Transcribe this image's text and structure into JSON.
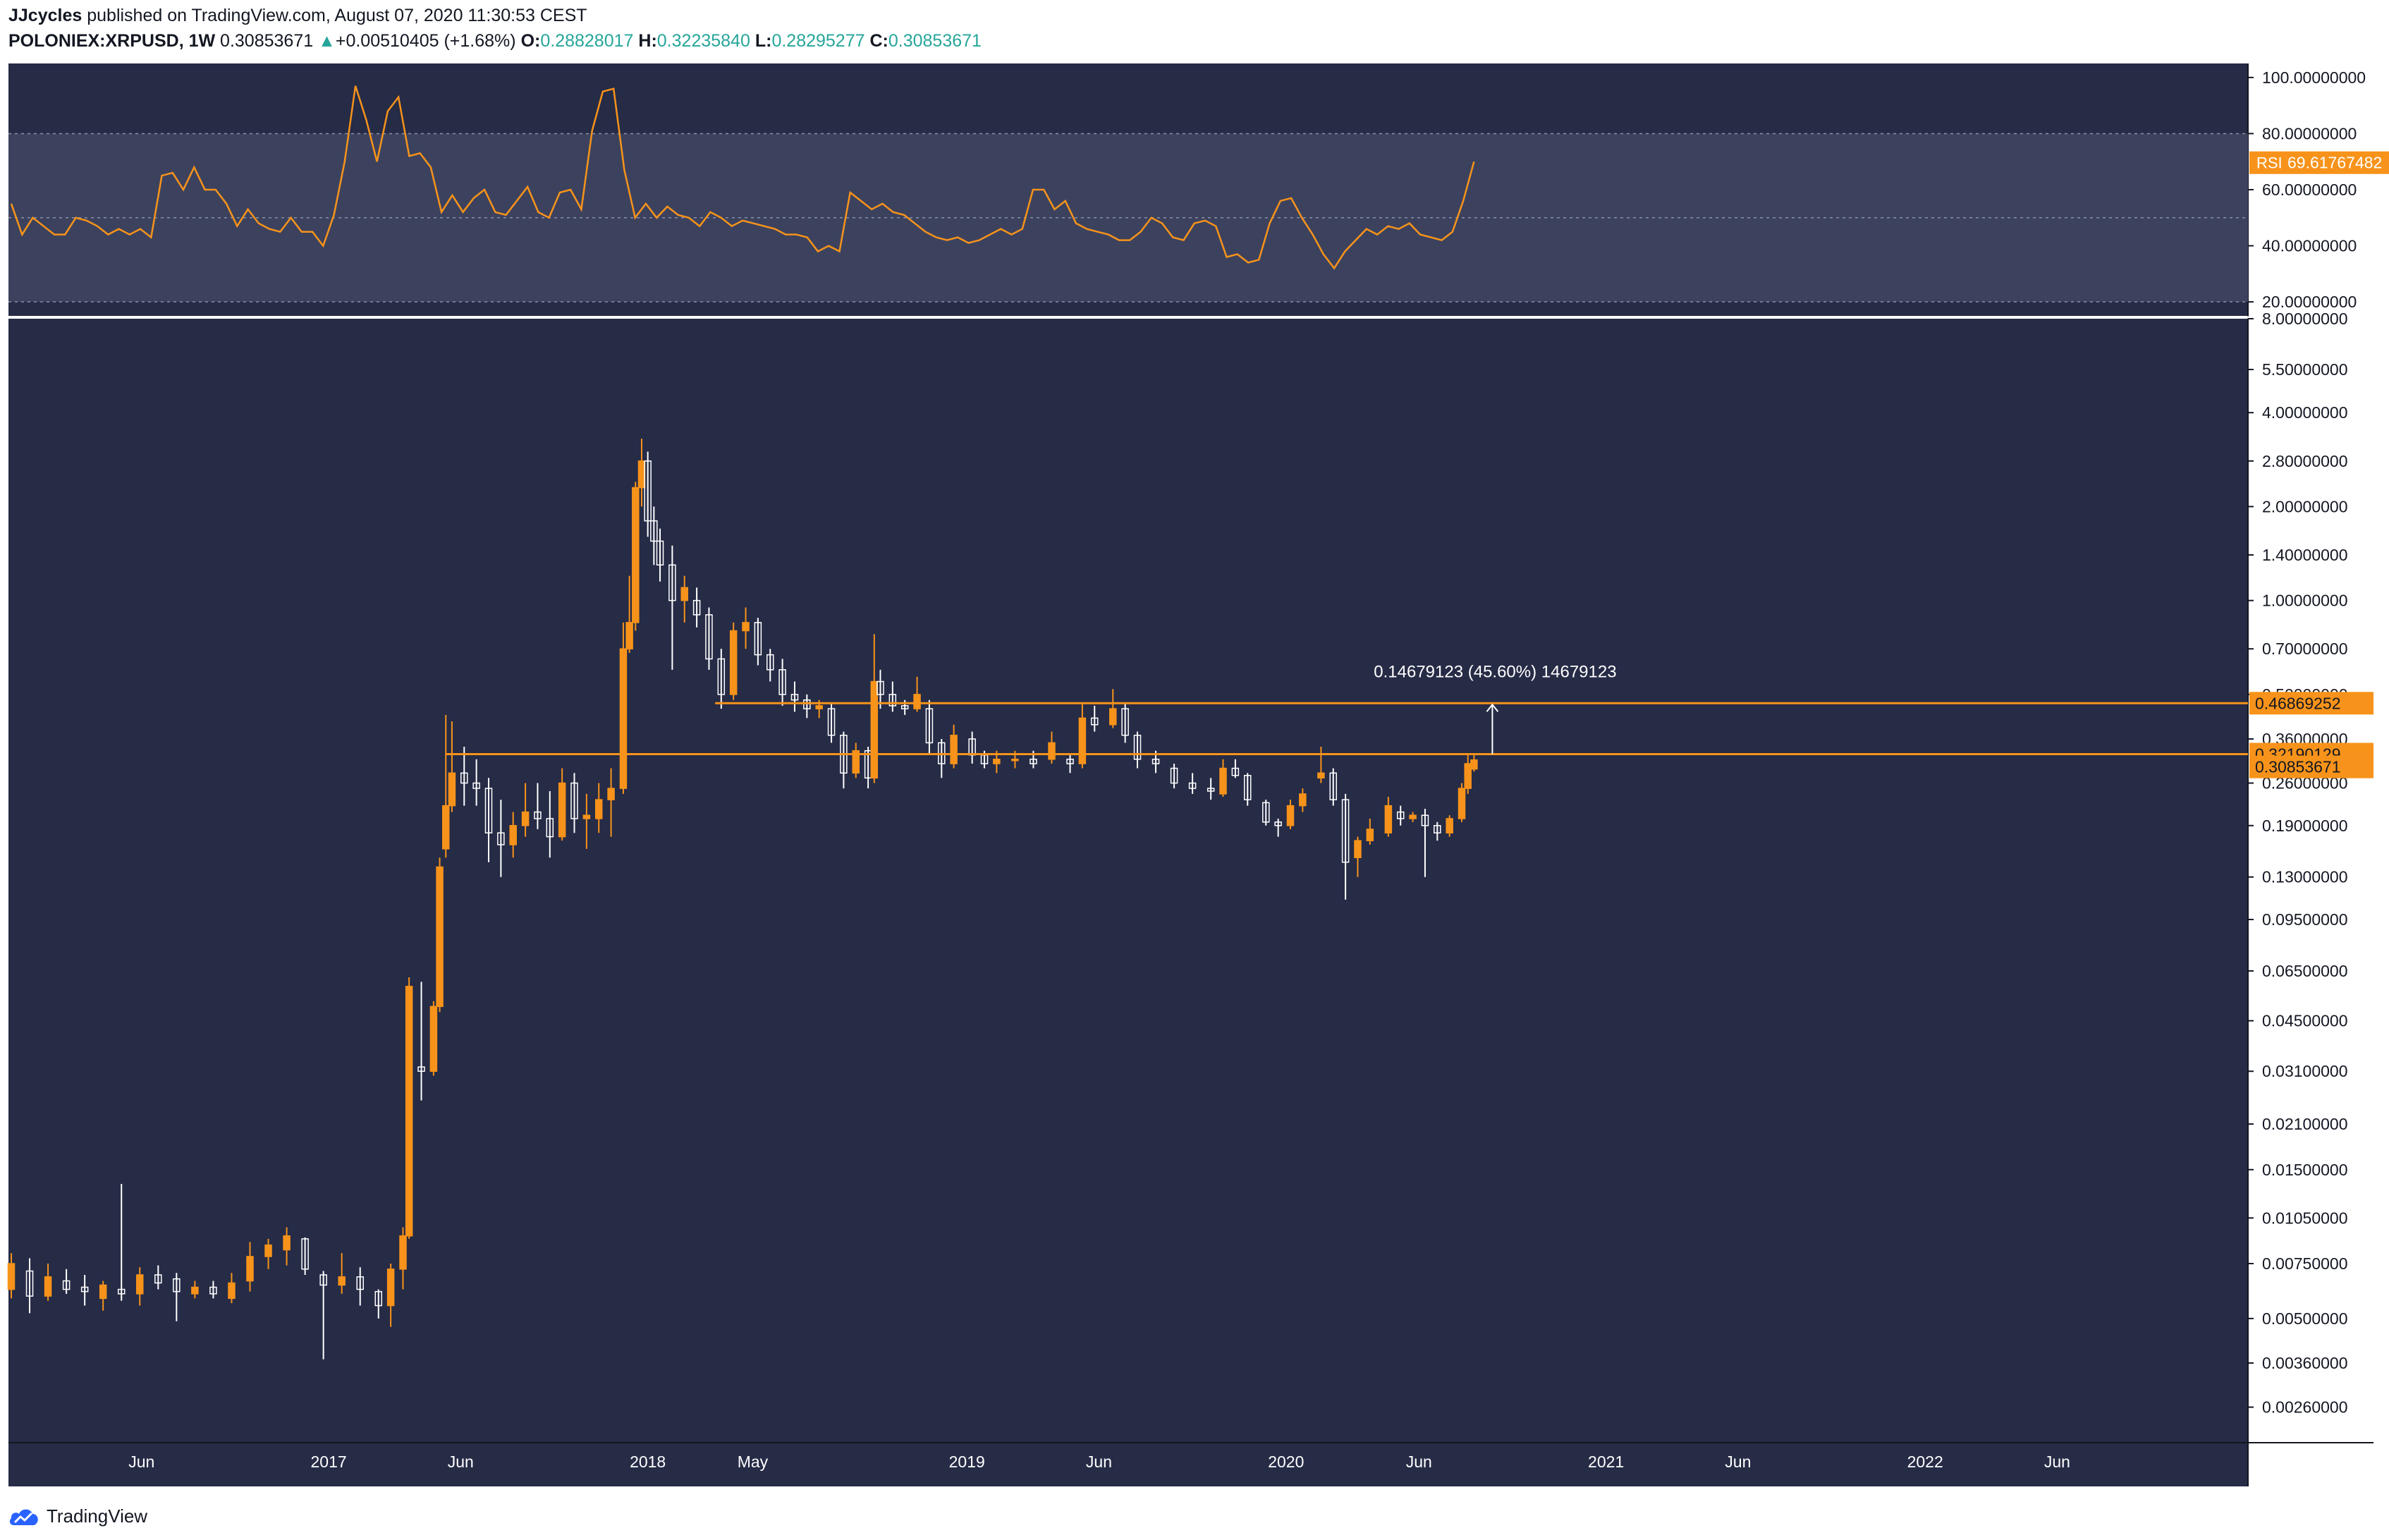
{
  "header": {
    "author": "JJcycles",
    "published_text": "published on TradingView.com, August 07, 2020 11:30:53 CEST",
    "symbol": "POLONIEX:XRPUSD, 1W",
    "last": "0.30853671",
    "change_arrow": "▲",
    "change": "+0.00510405 (+1.68%)",
    "o_label": "O:",
    "o_value": "0.28828017",
    "h_label": "H:",
    "h_value": "0.32235840",
    "l_label": "L:",
    "l_value": "0.28295277",
    "c_label": "C:",
    "c_value": "0.30853671"
  },
  "footer": {
    "brand": "TradingView",
    "icon": "tradingview-cloud-icon"
  },
  "colors": {
    "background": "#262b46",
    "rsi_band": "#3c425e",
    "accent": "#f7931a",
    "candle_up": "#f7931a",
    "candle_down": "#ffffff",
    "text_up": "#26a69a",
    "axis_text": "#131722"
  },
  "chart_data": [
    {
      "type": "line",
      "name": "rsi-panel",
      "indicator": "RSI",
      "label_value": "69.61767482",
      "y_ticks": [
        "100.00000000",
        "80.00000000",
        "60.00000000",
        "40.00000000",
        "20.00000000"
      ],
      "ylim": [
        15,
        105
      ],
      "band": [
        20,
        80
      ],
      "midline": 50,
      "values": [
        55,
        44,
        50,
        47,
        44,
        44,
        50,
        49,
        47,
        44,
        46,
        44,
        46,
        43,
        65,
        66,
        60,
        68,
        60,
        60,
        55,
        47,
        53,
        48,
        46,
        45,
        50,
        45,
        45,
        40,
        51,
        70,
        97,
        85,
        70,
        88,
        93,
        72,
        73,
        68,
        52,
        58,
        52,
        57,
        60,
        52,
        51,
        56,
        61,
        52,
        50,
        59,
        60,
        53,
        81,
        95,
        96,
        67,
        50,
        55,
        50,
        54,
        51,
        50,
        47,
        52,
        50,
        47,
        49,
        48,
        47,
        46,
        44,
        44,
        43,
        38,
        40,
        38,
        59,
        56,
        53,
        55,
        52,
        51,
        48,
        45,
        43,
        42,
        43,
        41,
        42,
        44,
        46,
        44,
        46,
        60,
        60,
        53,
        56,
        48,
        46,
        45,
        44,
        42,
        42,
        45,
        50,
        48,
        43,
        42,
        48,
        49,
        47,
        36,
        37,
        34,
        35,
        48,
        56,
        57,
        50,
        44,
        37,
        32,
        38,
        42,
        46,
        44,
        47,
        46,
        48,
        44,
        43,
        42,
        45,
        56,
        70
      ],
      "grid": false
    },
    {
      "type": "candlestick",
      "name": "price-panel",
      "title": "POLONIEX:XRPUSD, 1W",
      "y_scale": "log",
      "ylim": [
        0.002,
        8
      ],
      "y_ticks": [
        "8.00000000",
        "5.50000000",
        "4.00000000",
        "2.80000000",
        "2.00000000",
        "1.40000000",
        "1.00000000",
        "0.70000000",
        "0.50000000",
        "0.36000000",
        "0.26000000",
        "0.19000000",
        "0.13000000",
        "0.09500000",
        "0.06500000",
        "0.04500000",
        "0.03100000",
        "0.02100000",
        "0.01500000",
        "0.01050000",
        "0.00750000",
        "0.00500000",
        "0.00360000",
        "0.00260000"
      ],
      "x_labels": [
        "Jun",
        "2017",
        "Jun",
        "2018",
        "May",
        "2019",
        "Jun",
        "2020",
        "Jun",
        "2021",
        "Jun",
        "2022",
        "Jun"
      ],
      "x_range": [
        "2016-01-04",
        "2023-01-02"
      ],
      "x_label_dates": [
        "2016-06-01",
        "2017-01-01",
        "2017-06-01",
        "2018-01-01",
        "2018-05-01",
        "2019-01-01",
        "2019-06-01",
        "2020-01-01",
        "2020-06-01",
        "2021-01-01",
        "2021-06-01",
        "2022-01-01",
        "2022-06-01"
      ],
      "candles": [
        {
          "t": "2016-01-04",
          "o": 0.0062,
          "h": 0.0081,
          "l": 0.0058,
          "c": 0.0075
        },
        {
          "t": "2016-01-25",
          "o": 0.0071,
          "h": 0.0078,
          "l": 0.0052,
          "c": 0.0059
        },
        {
          "t": "2016-02-15",
          "o": 0.0059,
          "h": 0.0075,
          "l": 0.0057,
          "c": 0.0068
        },
        {
          "t": "2016-03-07",
          "o": 0.0066,
          "h": 0.0072,
          "l": 0.006,
          "c": 0.0062
        },
        {
          "t": "2016-03-28",
          "o": 0.0063,
          "h": 0.0069,
          "l": 0.0055,
          "c": 0.0061
        },
        {
          "t": "2016-04-18",
          "o": 0.0058,
          "h": 0.0066,
          "l": 0.0053,
          "c": 0.0064
        },
        {
          "t": "2016-05-09",
          "o": 0.0062,
          "h": 0.0135,
          "l": 0.0057,
          "c": 0.006
        },
        {
          "t": "2016-05-30",
          "o": 0.006,
          "h": 0.0073,
          "l": 0.0055,
          "c": 0.0069
        },
        {
          "t": "2016-06-20",
          "o": 0.0069,
          "h": 0.0074,
          "l": 0.0062,
          "c": 0.0065
        },
        {
          "t": "2016-07-11",
          "o": 0.0067,
          "h": 0.007,
          "l": 0.0049,
          "c": 0.0061
        },
        {
          "t": "2016-08-01",
          "o": 0.006,
          "h": 0.0066,
          "l": 0.0058,
          "c": 0.0063
        },
        {
          "t": "2016-08-22",
          "o": 0.0063,
          "h": 0.0066,
          "l": 0.0058,
          "c": 0.006
        },
        {
          "t": "2016-09-12",
          "o": 0.0058,
          "h": 0.007,
          "l": 0.0056,
          "c": 0.0065
        },
        {
          "t": "2016-10-03",
          "o": 0.0066,
          "h": 0.0088,
          "l": 0.0061,
          "c": 0.0079
        },
        {
          "t": "2016-10-24",
          "o": 0.0079,
          "h": 0.009,
          "l": 0.0072,
          "c": 0.0086
        },
        {
          "t": "2016-11-14",
          "o": 0.0083,
          "h": 0.0098,
          "l": 0.0074,
          "c": 0.0092
        },
        {
          "t": "2016-12-05",
          "o": 0.009,
          "h": 0.0091,
          "l": 0.0069,
          "c": 0.0072
        },
        {
          "t": "2016-12-26",
          "o": 0.0069,
          "h": 0.0071,
          "l": 0.0037,
          "c": 0.0064
        },
        {
          "t": "2017-01-16",
          "o": 0.0064,
          "h": 0.0081,
          "l": 0.006,
          "c": 0.0068
        },
        {
          "t": "2017-02-06",
          "o": 0.0068,
          "h": 0.0073,
          "l": 0.0055,
          "c": 0.0062
        },
        {
          "t": "2017-02-27",
          "o": 0.0061,
          "h": 0.0062,
          "l": 0.005,
          "c": 0.0055
        },
        {
          "t": "2017-03-13",
          "o": 0.0055,
          "h": 0.0075,
          "l": 0.0047,
          "c": 0.0072
        },
        {
          "t": "2017-03-27",
          "o": 0.0072,
          "h": 0.0098,
          "l": 0.0062,
          "c": 0.0092
        },
        {
          "t": "2017-04-03",
          "o": 0.0092,
          "h": 0.062,
          "l": 0.009,
          "c": 0.058
        },
        {
          "t": "2017-04-17",
          "o": 0.032,
          "h": 0.06,
          "l": 0.025,
          "c": 0.031
        },
        {
          "t": "2017-05-01",
          "o": 0.031,
          "h": 0.052,
          "l": 0.03,
          "c": 0.05
        },
        {
          "t": "2017-05-08",
          "o": 0.05,
          "h": 0.15,
          "l": 0.048,
          "c": 0.14
        },
        {
          "t": "2017-05-15",
          "o": 0.16,
          "h": 0.43,
          "l": 0.15,
          "c": 0.22
        },
        {
          "t": "2017-05-22",
          "o": 0.22,
          "h": 0.41,
          "l": 0.21,
          "c": 0.28
        },
        {
          "t": "2017-06-05",
          "o": 0.28,
          "h": 0.34,
          "l": 0.22,
          "c": 0.26
        },
        {
          "t": "2017-06-19",
          "o": 0.26,
          "h": 0.31,
          "l": 0.22,
          "c": 0.25
        },
        {
          "t": "2017-07-03",
          "o": 0.25,
          "h": 0.27,
          "l": 0.145,
          "c": 0.18
        },
        {
          "t": "2017-07-17",
          "o": 0.18,
          "h": 0.23,
          "l": 0.13,
          "c": 0.165
        },
        {
          "t": "2017-07-31",
          "o": 0.165,
          "h": 0.21,
          "l": 0.15,
          "c": 0.19
        },
        {
          "t": "2017-08-14",
          "o": 0.19,
          "h": 0.26,
          "l": 0.175,
          "c": 0.21
        },
        {
          "t": "2017-08-28",
          "o": 0.21,
          "h": 0.26,
          "l": 0.185,
          "c": 0.2
        },
        {
          "t": "2017-09-11",
          "o": 0.2,
          "h": 0.245,
          "l": 0.15,
          "c": 0.175
        },
        {
          "t": "2017-09-25",
          "o": 0.175,
          "h": 0.29,
          "l": 0.17,
          "c": 0.26
        },
        {
          "t": "2017-10-09",
          "o": 0.26,
          "h": 0.28,
          "l": 0.18,
          "c": 0.2
        },
        {
          "t": "2017-10-23",
          "o": 0.2,
          "h": 0.24,
          "l": 0.16,
          "c": 0.205
        },
        {
          "t": "2017-11-06",
          "o": 0.2,
          "h": 0.26,
          "l": 0.18,
          "c": 0.23
        },
        {
          "t": "2017-11-20",
          "o": 0.23,
          "h": 0.29,
          "l": 0.175,
          "c": 0.25
        },
        {
          "t": "2017-12-04",
          "o": 0.25,
          "h": 0.85,
          "l": 0.24,
          "c": 0.7
        },
        {
          "t": "2017-12-11",
          "o": 0.7,
          "h": 1.2,
          "l": 0.68,
          "c": 0.85
        },
        {
          "t": "2017-12-18",
          "o": 0.85,
          "h": 2.4,
          "l": 0.8,
          "c": 2.3
        },
        {
          "t": "2017-12-25",
          "o": 2.3,
          "h": 3.3,
          "l": 2.0,
          "c": 2.8
        },
        {
          "t": "2018-01-01",
          "o": 2.8,
          "h": 3.0,
          "l": 1.6,
          "c": 1.8
        },
        {
          "t": "2018-01-08",
          "o": 1.8,
          "h": 2.0,
          "l": 1.3,
          "c": 1.55
        },
        {
          "t": "2018-01-15",
          "o": 1.55,
          "h": 1.7,
          "l": 1.15,
          "c": 1.3
        },
        {
          "t": "2018-01-29",
          "o": 1.3,
          "h": 1.5,
          "l": 0.6,
          "c": 1.0
        },
        {
          "t": "2018-02-12",
          "o": 1.0,
          "h": 1.2,
          "l": 0.85,
          "c": 1.1
        },
        {
          "t": "2018-02-26",
          "o": 1.0,
          "h": 1.1,
          "l": 0.82,
          "c": 0.9
        },
        {
          "t": "2018-03-12",
          "o": 0.9,
          "h": 0.95,
          "l": 0.6,
          "c": 0.65
        },
        {
          "t": "2018-03-26",
          "o": 0.65,
          "h": 0.7,
          "l": 0.45,
          "c": 0.5
        },
        {
          "t": "2018-04-09",
          "o": 0.5,
          "h": 0.85,
          "l": 0.48,
          "c": 0.8
        },
        {
          "t": "2018-04-23",
          "o": 0.8,
          "h": 0.95,
          "l": 0.7,
          "c": 0.85
        },
        {
          "t": "2018-05-07",
          "o": 0.85,
          "h": 0.88,
          "l": 0.62,
          "c": 0.67
        },
        {
          "t": "2018-05-21",
          "o": 0.67,
          "h": 0.7,
          "l": 0.55,
          "c": 0.6
        },
        {
          "t": "2018-06-04",
          "o": 0.6,
          "h": 0.65,
          "l": 0.46,
          "c": 0.5
        },
        {
          "t": "2018-06-18",
          "o": 0.5,
          "h": 0.55,
          "l": 0.44,
          "c": 0.48
        },
        {
          "t": "2018-07-02",
          "o": 0.48,
          "h": 0.5,
          "l": 0.42,
          "c": 0.45
        },
        {
          "t": "2018-07-16",
          "o": 0.45,
          "h": 0.48,
          "l": 0.42,
          "c": 0.46
        },
        {
          "t": "2018-07-30",
          "o": 0.45,
          "h": 0.47,
          "l": 0.35,
          "c": 0.37
        },
        {
          "t": "2018-08-13",
          "o": 0.37,
          "h": 0.38,
          "l": 0.25,
          "c": 0.28
        },
        {
          "t": "2018-08-27",
          "o": 0.28,
          "h": 0.35,
          "l": 0.27,
          "c": 0.33
        },
        {
          "t": "2018-09-10",
          "o": 0.33,
          "h": 0.34,
          "l": 0.25,
          "c": 0.27
        },
        {
          "t": "2018-09-17",
          "o": 0.27,
          "h": 0.78,
          "l": 0.26,
          "c": 0.55
        },
        {
          "t": "2018-09-24",
          "o": 0.55,
          "h": 0.6,
          "l": 0.45,
          "c": 0.5
        },
        {
          "t": "2018-10-08",
          "o": 0.5,
          "h": 0.55,
          "l": 0.44,
          "c": 0.46
        },
        {
          "t": "2018-10-22",
          "o": 0.46,
          "h": 0.48,
          "l": 0.43,
          "c": 0.45
        },
        {
          "t": "2018-11-05",
          "o": 0.45,
          "h": 0.57,
          "l": 0.44,
          "c": 0.5
        },
        {
          "t": "2018-11-19",
          "o": 0.45,
          "h": 0.48,
          "l": 0.32,
          "c": 0.35
        },
        {
          "t": "2018-12-03",
          "o": 0.35,
          "h": 0.36,
          "l": 0.27,
          "c": 0.3
        },
        {
          "t": "2018-12-17",
          "o": 0.3,
          "h": 0.4,
          "l": 0.29,
          "c": 0.37
        },
        {
          "t": "2019-01-07",
          "o": 0.36,
          "h": 0.38,
          "l": 0.3,
          "c": 0.32
        },
        {
          "t": "2019-01-21",
          "o": 0.32,
          "h": 0.33,
          "l": 0.29,
          "c": 0.3
        },
        {
          "t": "2019-02-04",
          "o": 0.3,
          "h": 0.33,
          "l": 0.28,
          "c": 0.31
        },
        {
          "t": "2019-02-25",
          "o": 0.31,
          "h": 0.33,
          "l": 0.29,
          "c": 0.31
        },
        {
          "t": "2019-03-18",
          "o": 0.31,
          "h": 0.33,
          "l": 0.29,
          "c": 0.3
        },
        {
          "t": "2019-04-08",
          "o": 0.31,
          "h": 0.38,
          "l": 0.3,
          "c": 0.35
        },
        {
          "t": "2019-04-29",
          "o": 0.31,
          "h": 0.32,
          "l": 0.28,
          "c": 0.3
        },
        {
          "t": "2019-05-13",
          "o": 0.3,
          "h": 0.47,
          "l": 0.29,
          "c": 0.42
        },
        {
          "t": "2019-05-27",
          "o": 0.42,
          "h": 0.46,
          "l": 0.38,
          "c": 0.4
        },
        {
          "t": "2019-06-17",
          "o": 0.4,
          "h": 0.52,
          "l": 0.39,
          "c": 0.45
        },
        {
          "t": "2019-07-01",
          "o": 0.45,
          "h": 0.47,
          "l": 0.35,
          "c": 0.37
        },
        {
          "t": "2019-07-15",
          "o": 0.37,
          "h": 0.38,
          "l": 0.29,
          "c": 0.31
        },
        {
          "t": "2019-08-05",
          "o": 0.31,
          "h": 0.33,
          "l": 0.28,
          "c": 0.3
        },
        {
          "t": "2019-08-26",
          "o": 0.29,
          "h": 0.3,
          "l": 0.25,
          "c": 0.26
        },
        {
          "t": "2019-09-16",
          "o": 0.26,
          "h": 0.28,
          "l": 0.24,
          "c": 0.25
        },
        {
          "t": "2019-10-07",
          "o": 0.25,
          "h": 0.27,
          "l": 0.23,
          "c": 0.245
        },
        {
          "t": "2019-10-21",
          "o": 0.24,
          "h": 0.31,
          "l": 0.235,
          "c": 0.29
        },
        {
          "t": "2019-11-04",
          "o": 0.29,
          "h": 0.31,
          "l": 0.27,
          "c": 0.275
        },
        {
          "t": "2019-11-18",
          "o": 0.275,
          "h": 0.28,
          "l": 0.22,
          "c": 0.23
        },
        {
          "t": "2019-12-09",
          "o": 0.225,
          "h": 0.23,
          "l": 0.19,
          "c": 0.195
        },
        {
          "t": "2019-12-23",
          "o": 0.195,
          "h": 0.2,
          "l": 0.175,
          "c": 0.19
        },
        {
          "t": "2020-01-06",
          "o": 0.19,
          "h": 0.23,
          "l": 0.185,
          "c": 0.22
        },
        {
          "t": "2020-01-20",
          "o": 0.22,
          "h": 0.25,
          "l": 0.21,
          "c": 0.24
        },
        {
          "t": "2020-02-10",
          "o": 0.27,
          "h": 0.34,
          "l": 0.26,
          "c": 0.28
        },
        {
          "t": "2020-02-24",
          "o": 0.28,
          "h": 0.29,
          "l": 0.22,
          "c": 0.23
        },
        {
          "t": "2020-03-09",
          "o": 0.23,
          "h": 0.24,
          "l": 0.11,
          "c": 0.145
        },
        {
          "t": "2020-03-23",
          "o": 0.15,
          "h": 0.175,
          "l": 0.13,
          "c": 0.17
        },
        {
          "t": "2020-04-06",
          "o": 0.17,
          "h": 0.2,
          "l": 0.165,
          "c": 0.185
        },
        {
          "t": "2020-04-27",
          "o": 0.18,
          "h": 0.235,
          "l": 0.175,
          "c": 0.22
        },
        {
          "t": "2020-05-11",
          "o": 0.21,
          "h": 0.22,
          "l": 0.19,
          "c": 0.2
        },
        {
          "t": "2020-05-25",
          "o": 0.2,
          "h": 0.21,
          "l": 0.195,
          "c": 0.205
        },
        {
          "t": "2020-06-08",
          "o": 0.205,
          "h": 0.215,
          "l": 0.13,
          "c": 0.19
        },
        {
          "t": "2020-06-22",
          "o": 0.19,
          "h": 0.195,
          "l": 0.17,
          "c": 0.18
        },
        {
          "t": "2020-07-06",
          "o": 0.18,
          "h": 0.205,
          "l": 0.175,
          "c": 0.2
        },
        {
          "t": "2020-07-20",
          "o": 0.2,
          "h": 0.26,
          "l": 0.195,
          "c": 0.25
        },
        {
          "t": "2020-07-27",
          "o": 0.25,
          "h": 0.32,
          "l": 0.24,
          "c": 0.3
        },
        {
          "t": "2020-08-03",
          "o": 0.2883,
          "h": 0.3224,
          "l": 0.283,
          "c": 0.3085
        }
      ],
      "horizontal_lines": [
        {
          "price": 0.46869252,
          "label": "0.46869252",
          "from": "2018-03-19"
        },
        {
          "price": 0.32190129,
          "label": "0.32190129",
          "from": "2017-05-15"
        }
      ],
      "last_price_label": "0.30853671",
      "measure_annotation": {
        "text": "0.14679123 (45.60%) 14679123",
        "at": "2020-08-24"
      },
      "grid": false
    }
  ]
}
